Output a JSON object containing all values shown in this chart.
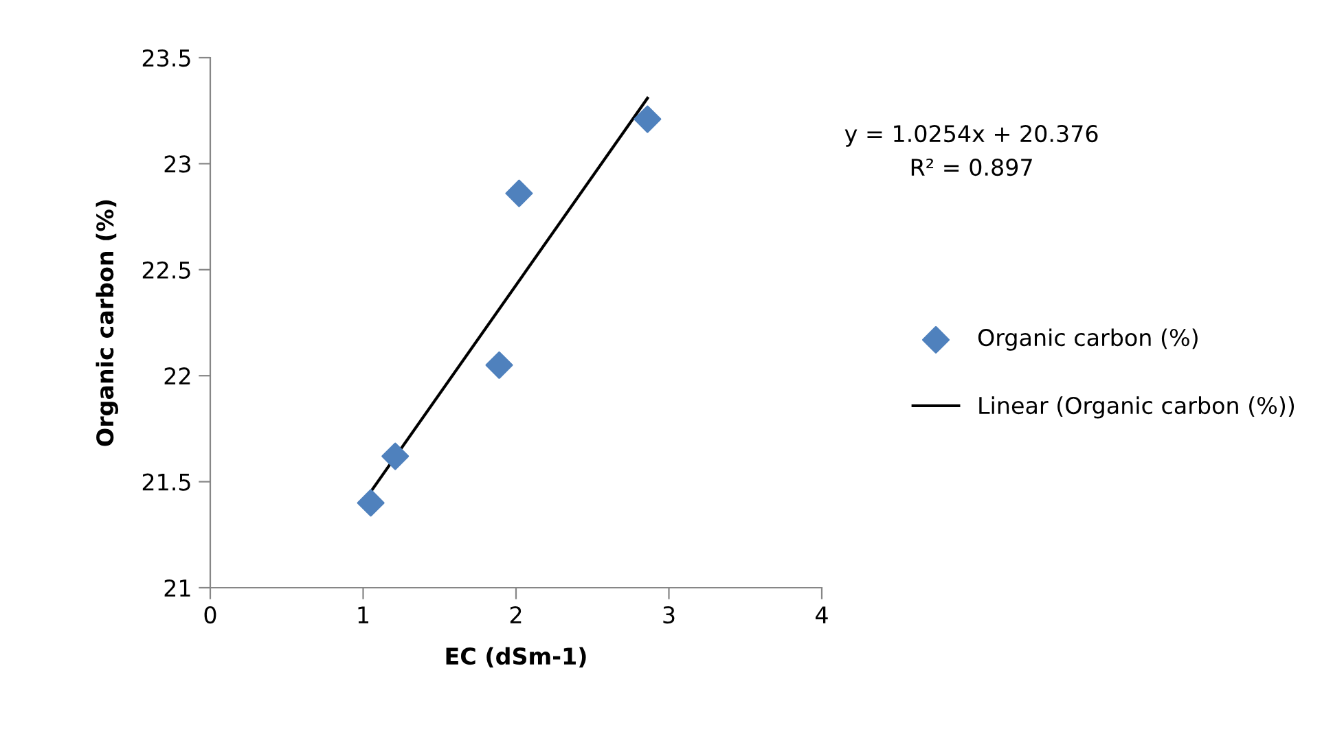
{
  "chart_data": {
    "type": "scatter",
    "xlabel": "EC (dSm-1)",
    "ylabel": "Organic carbon (%)",
    "xlim": [
      0,
      4
    ],
    "xticks": [
      0,
      1,
      2,
      3,
      4
    ],
    "ylim": [
      21,
      23.5
    ],
    "yticks": [
      21,
      21.5,
      22,
      22.5,
      23,
      23.5
    ],
    "marker": "diamond",
    "legend": "right",
    "grid": false,
    "series": [
      {
        "name": "Organic carbon (%)",
        "color": "#4f81bd",
        "x": [
          1.05,
          1.21,
          1.89,
          2.02,
          2.86
        ],
        "values": [
          21.4,
          21.62,
          22.05,
          22.86,
          23.21
        ]
      },
      {
        "name": "Linear (Organic carbon (%))",
        "type": "line",
        "color": "#000000",
        "marker": "none",
        "line_style": "solid",
        "x": [
          1.05,
          2.86
        ],
        "values": [
          21.453,
          23.309
        ]
      }
    ],
    "annotations": [
      "y = 1.0254x + 20.376",
      "R² = 0.897"
    ]
  }
}
